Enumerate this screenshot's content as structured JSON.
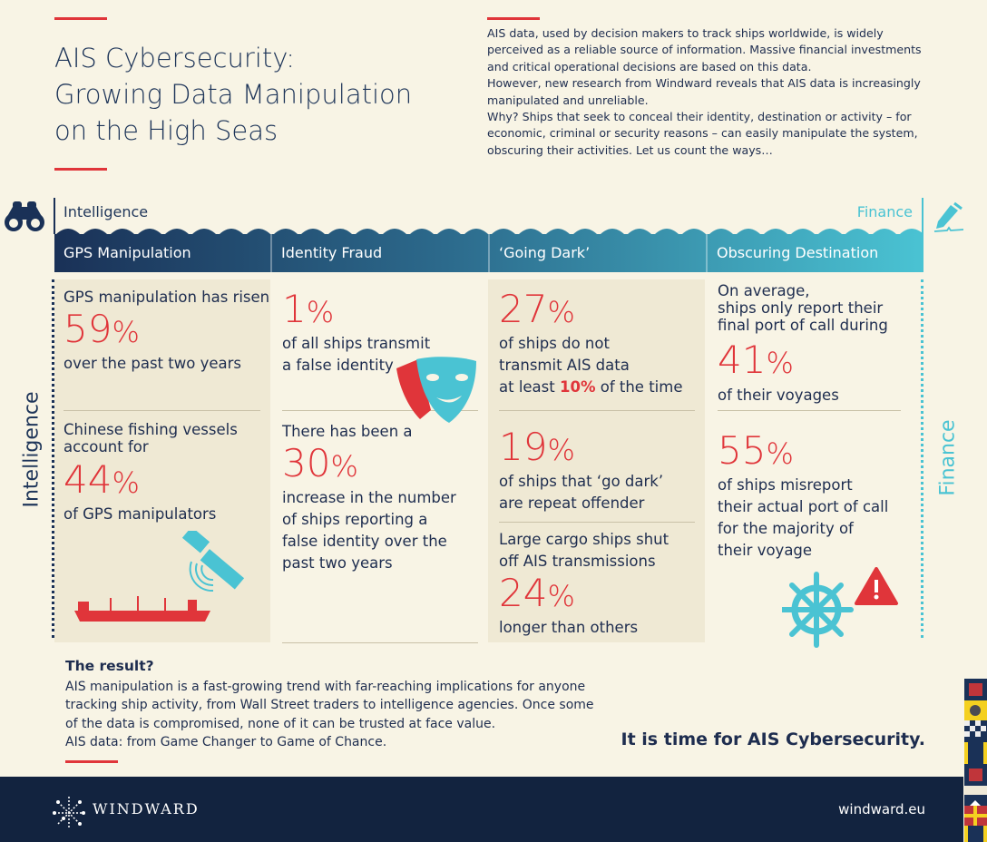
{
  "header": {
    "title_lines": [
      "AIS Cybersecurity:",
      "Growing Data Manipulation",
      "on the High Seas"
    ],
    "intro": [
      "AIS data, used by decision makers to track ships worldwide, is widely perceived as a reliable source of information. Massive financial investments and critical operational decisions are based on this data.",
      "However, new research from Windward reveals that AIS data is increasingly manipulated and unreliable.",
      "Why? Ships that seek to conceal their identity, destination or activity – for economic, criminal or security reasons – can easily manipulate the system, obscuring their activities. Let us count the ways…"
    ]
  },
  "band": {
    "left_label": "Intelligence",
    "right_label": "Finance",
    "left_icon": "binoculars-icon",
    "right_icon": "pen-signature-icon"
  },
  "tabs": [
    "GPS Manipulation",
    "Identity Fraud",
    "‘Going Dark’",
    "Obscuring Destination"
  ],
  "side_labels": {
    "left": "Intelligence",
    "right": "Finance"
  },
  "columns": {
    "gps": {
      "s1_pre": "GPS manipulation has risen",
      "s1_num": "59",
      "s1_post": "over the past two years",
      "s2_pre": [
        "Chinese fishing vessels",
        "account for"
      ],
      "s2_num": "44",
      "s2_post": "of GPS manipulators"
    },
    "identity": {
      "s1_num": "1",
      "s1_post": [
        "of all ships transmit",
        "a false identity"
      ],
      "s2_pre": "There has been a",
      "s2_num": "30",
      "s2_post": [
        "increase in the number",
        "of ships reporting a",
        "false identity over the",
        "past two years"
      ]
    },
    "dark": {
      "s1_num": "27",
      "s1_post": [
        "of ships do not",
        "transmit AIS data"
      ],
      "s1_last_pre": "at least ",
      "s1_last_hl": "10%",
      "s1_last_post": " of the time",
      "s2_num": "19",
      "s2_post": [
        "of ships that ‘go dark’",
        "are repeat offender"
      ],
      "s3_pre": [
        "Large cargo ships shut",
        "off AIS transmissions"
      ],
      "s3_num": "24",
      "s3_post": "longer than others"
    },
    "destination": {
      "s1_pre": [
        "On average,",
        "ships only report their",
        "final port of call during"
      ],
      "s1_num": "41",
      "s1_post": "of their voyages",
      "s2_num": "55",
      "s2_post": [
        "of ships misreport",
        "their actual port of call",
        "for the majority of",
        "their voyage"
      ]
    }
  },
  "pct": "%",
  "result": {
    "heading": "The result?",
    "lines": [
      "AIS manipulation is a fast-growing trend with far-reaching implications for anyone tracking ship activity, from Wall Street traders to intelligence agencies. Once some of the data is compromised, none of it can be trusted at face value.",
      "AIS data: from Game Changer to Game of Chance."
    ],
    "cta": "It is time for AIS Cybersecurity."
  },
  "footer": {
    "brand": "WINDWARD",
    "url": "windward.eu"
  },
  "colors": {
    "navy": "#1a3157",
    "red": "#e0353a",
    "teal": "#4ac3d3",
    "background": "#f8f4e5"
  }
}
